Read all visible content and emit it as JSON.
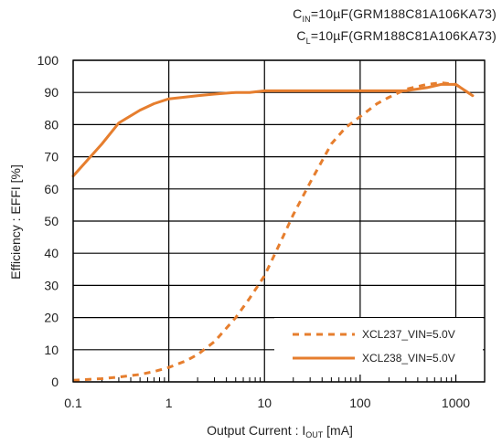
{
  "conditions": {
    "cin_prefix": "C",
    "cin_sub": "IN",
    "cin_value": "=10µF(GRM188C81A106KA73)",
    "cl_prefix": "C",
    "cl_sub": "L",
    "cl_value": "=10µF(GRM188C81A106KA73)"
  },
  "colors": {
    "series": "#E67E2E",
    "grid": "#000000",
    "background": "#ffffff"
  },
  "chart_data": {
    "type": "line",
    "title": "",
    "xlabel_prefix": "Output Current : I",
    "xlabel_sub": "OUT",
    "xlabel_suffix": " [mA]",
    "ylabel": "Efficiency : EFFI  [%]",
    "xscale": "log",
    "xlim": [
      0.1,
      2000
    ],
    "ylim": [
      0,
      100
    ],
    "x_ticks": [
      0.1,
      1,
      10,
      100,
      1000
    ],
    "x_tick_labels": [
      "0.1",
      "1",
      "10",
      "100",
      "1000"
    ],
    "y_ticks": [
      0,
      10,
      20,
      30,
      40,
      50,
      60,
      70,
      80,
      90,
      100
    ],
    "y_tick_labels": [
      "0",
      "10",
      "20",
      "30",
      "40",
      "50",
      "60",
      "70",
      "80",
      "90",
      "100"
    ],
    "grid": true,
    "legend_position": "bottom-right",
    "series": [
      {
        "name": "XCL237_VIN=5.0V",
        "style": "dashed",
        "x": [
          0.1,
          0.2,
          0.3,
          0.5,
          0.7,
          1,
          1.5,
          2,
          3,
          5,
          7,
          10,
          15,
          20,
          30,
          50,
          70,
          100,
          150,
          200,
          300,
          500,
          700,
          1000,
          1500
        ],
        "y": [
          0.5,
          1.0,
          1.5,
          2.3,
          3.2,
          4.5,
          6.5,
          8.5,
          12.5,
          20,
          26,
          33,
          44,
          52,
          62,
          74,
          79,
          82.5,
          86.5,
          88.5,
          91,
          92.5,
          93,
          92.5,
          89
        ]
      },
      {
        "name": "XCL238_VIN=5.0V",
        "style": "solid",
        "x": [
          0.1,
          0.2,
          0.3,
          0.5,
          0.7,
          1,
          2,
          3,
          5,
          7,
          10,
          20,
          50,
          100,
          200,
          300,
          500,
          700,
          1000,
          1500
        ],
        "y": [
          64,
          74,
          80.5,
          84.5,
          86.5,
          88,
          89,
          89.5,
          90,
          90,
          90.5,
          90.5,
          90.5,
          90.5,
          90.5,
          90.5,
          91.5,
          92.5,
          92.5,
          89
        ]
      }
    ]
  }
}
